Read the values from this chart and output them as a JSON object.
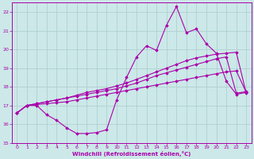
{
  "bg_color": "#cce8e8",
  "grid_color": "#aacccc",
  "line_color": "#aa00aa",
  "marker_color": "#aa00aa",
  "xlabel": "Windchill (Refroidissement éolien,°C)",
  "xlabel_color": "#aa00aa",
  "tick_color": "#aa00aa",
  "ylim": [
    15,
    22.5
  ],
  "xlim": [
    -0.5,
    23.5
  ],
  "yticks": [
    15,
    16,
    17,
    18,
    19,
    20,
    21,
    22
  ],
  "xticks": [
    0,
    1,
    2,
    3,
    4,
    5,
    6,
    7,
    8,
    9,
    10,
    11,
    12,
    13,
    14,
    15,
    16,
    17,
    18,
    19,
    20,
    21,
    22,
    23
  ],
  "series1_x": [
    0,
    1,
    2,
    3,
    4,
    5,
    6,
    7,
    8,
    9,
    10,
    11,
    12,
    13,
    14,
    15,
    16,
    17,
    18,
    19,
    20,
    21,
    22,
    23
  ],
  "series1_y": [
    16.6,
    17.0,
    17.0,
    16.5,
    16.2,
    15.8,
    15.5,
    15.5,
    15.55,
    15.7,
    17.3,
    18.5,
    19.6,
    20.2,
    19.95,
    21.3,
    22.3,
    20.9,
    21.1,
    20.3,
    19.8,
    18.3,
    17.6,
    17.7
  ],
  "series2_x": [
    0,
    1,
    2,
    3,
    4,
    5,
    6,
    7,
    8,
    9,
    10,
    11,
    12,
    13,
    14,
    15,
    16,
    17,
    18,
    19,
    20,
    21,
    22,
    23
  ],
  "series2_y": [
    16.6,
    17.0,
    17.1,
    17.2,
    17.3,
    17.4,
    17.55,
    17.7,
    17.8,
    17.9,
    18.05,
    18.2,
    18.4,
    18.6,
    18.8,
    19.0,
    19.2,
    19.4,
    19.55,
    19.65,
    19.75,
    19.8,
    19.85,
    17.65
  ],
  "series3_x": [
    0,
    1,
    2,
    3,
    4,
    5,
    6,
    7,
    8,
    9,
    10,
    11,
    12,
    13,
    14,
    15,
    16,
    17,
    18,
    19,
    20,
    21,
    22,
    23
  ],
  "series3_y": [
    16.6,
    17.0,
    17.1,
    17.2,
    17.3,
    17.4,
    17.5,
    17.6,
    17.7,
    17.8,
    17.9,
    18.05,
    18.2,
    18.4,
    18.6,
    18.75,
    18.9,
    19.05,
    19.2,
    19.35,
    19.5,
    19.6,
    17.65,
    17.75
  ],
  "series4_x": [
    0,
    1,
    2,
    3,
    4,
    5,
    6,
    7,
    8,
    9,
    10,
    11,
    12,
    13,
    14,
    15,
    16,
    17,
    18,
    19,
    20,
    21,
    22,
    23
  ],
  "series4_y": [
    16.6,
    17.0,
    17.05,
    17.1,
    17.15,
    17.2,
    17.3,
    17.4,
    17.5,
    17.6,
    17.7,
    17.8,
    17.9,
    18.0,
    18.1,
    18.2,
    18.3,
    18.4,
    18.5,
    18.6,
    18.7,
    18.8,
    18.85,
    17.7
  ]
}
